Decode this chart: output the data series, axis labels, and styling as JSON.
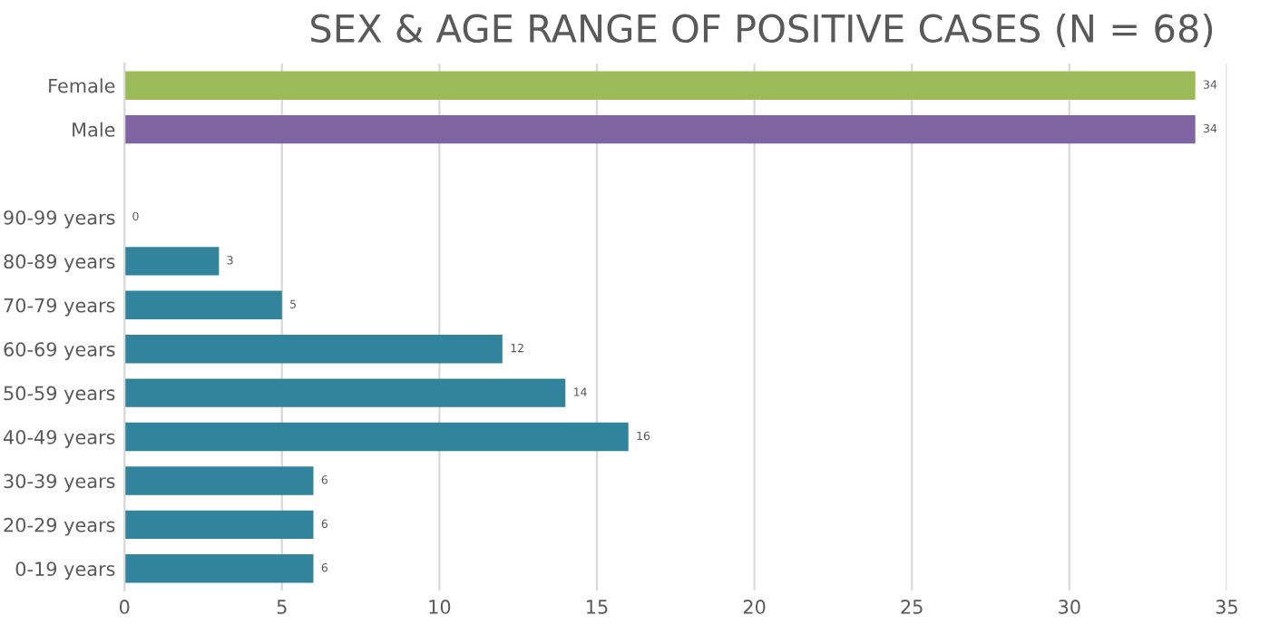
{
  "chart_data": {
    "type": "bar",
    "orientation": "horizontal",
    "title": "SEX & AGE RANGE OF POSITIVE CASES (N = 68)",
    "categories": [
      "Female",
      "Male",
      null,
      "90-99 years",
      "80-89 years",
      "70-79 years",
      "60-69 years",
      "50-59 years",
      "40-49 years",
      "30-39 years",
      "20-29 years",
      "0-19 years"
    ],
    "values": [
      34,
      34,
      null,
      0,
      3,
      5,
      12,
      14,
      16,
      6,
      6,
      6
    ],
    "colors": [
      "#9bbb59",
      "#8064a2",
      null,
      "#31849b",
      "#31849b",
      "#31849b",
      "#31849b",
      "#31849b",
      "#31849b",
      "#31849b",
      "#31849b",
      "#31849b"
    ],
    "xlim": [
      0,
      35
    ],
    "xticks": [
      0,
      5,
      10,
      15,
      20,
      25,
      30,
      35
    ],
    "grid": "x",
    "data_labels": true
  }
}
